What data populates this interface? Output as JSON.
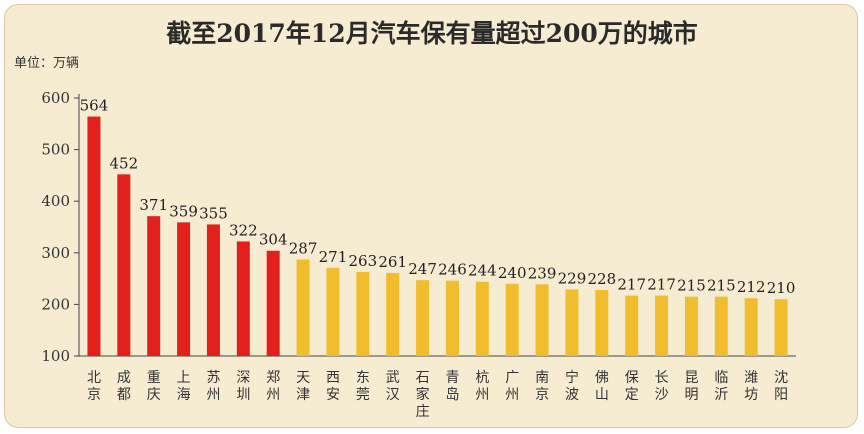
{
  "chart_data": {
    "type": "bar",
    "title": "截至2017年12月汽车保有量超过200万的城市",
    "unit_label": "单位：万辆",
    "ylim": [
      100,
      600
    ],
    "yticks": [
      100,
      200,
      300,
      400,
      500,
      600
    ],
    "grid": false,
    "categories": [
      "北京",
      "成都",
      "重庆",
      "上海",
      "苏州",
      "深圳",
      "郑州",
      "天津",
      "西安",
      "东莞",
      "武汉",
      "石家庄",
      "青岛",
      "杭州",
      "广州",
      "南京",
      "宁波",
      "佛山",
      "保定",
      "长沙",
      "昆明",
      "临沂",
      "潍坊",
      "沈阳"
    ],
    "values": [
      564,
      452,
      371,
      359,
      355,
      322,
      304,
      287,
      271,
      263,
      261,
      247,
      246,
      244,
      240,
      239,
      229,
      228,
      217,
      217,
      215,
      215,
      212,
      210
    ],
    "colors": {
      "top_group": "#e4201c",
      "other_group": "#f2bd2d",
      "axis": "#444444"
    },
    "top_group_count": 7
  }
}
